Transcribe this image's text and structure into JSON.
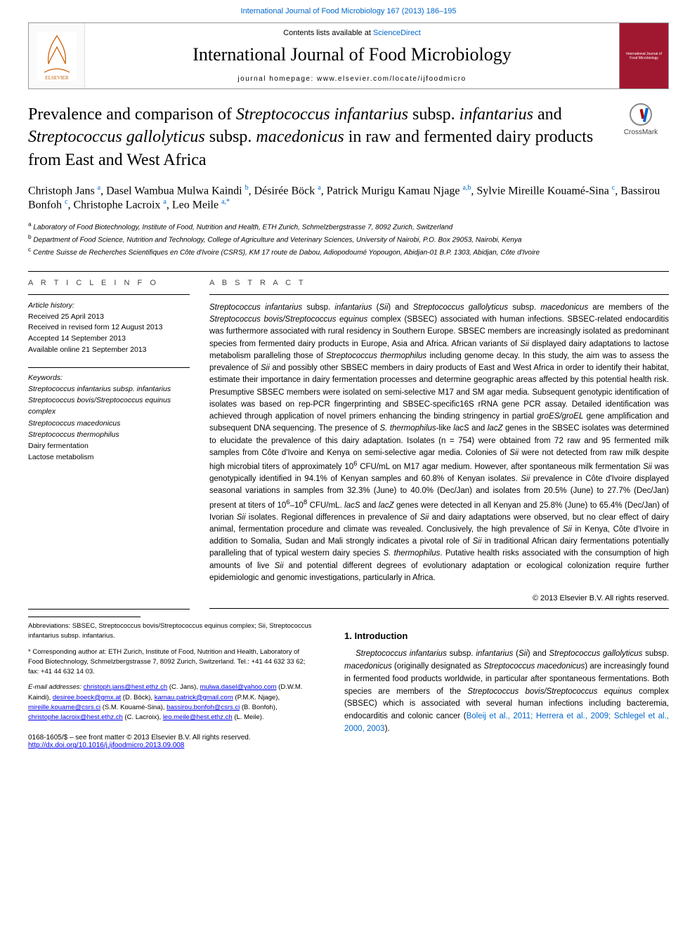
{
  "top_link_pre": "",
  "top_link": "International Journal of Food Microbiology 167 (2013) 186–195",
  "header": {
    "contents_pre": "Contents lists available at ",
    "contents_link": "ScienceDirect",
    "journal": "International Journal of Food Microbiology",
    "homepage_pre": "journal homepage: ",
    "homepage": "www.elsevier.com/locate/ijfoodmicro"
  },
  "crossmark_label": "CrossMark",
  "title_html": "Prevalence and comparison of <span class=\"italic\">Streptococcus infantarius</span> subsp. <span class=\"italic\">infantarius</span> and <span class=\"italic\">Streptococcus gallolyticus</span> subsp. <span class=\"italic\">macedonicus</span> in raw and fermented dairy products from East and West Africa",
  "authors_html": "Christoph Jans <sup>a</sup>, Dasel Wambua Mulwa Kaindi <sup>b</sup>, Désirée Böck <sup>a</sup>, Patrick Murigu Kamau Njage <sup>a,b</sup>, Sylvie Mireille Kouamé-Sina <sup>c</sup>, Bassirou Bonfoh <sup>c</sup>, Christophe Lacroix <sup>a</sup>, Leo Meile <sup>a,*</sup>",
  "affiliations": [
    "a Laboratory of Food Biotechnology, Institute of Food, Nutrition and Health, ETH Zurich, Schmelzbergstrasse 7, 8092 Zurich, Switzerland",
    "b Department of Food Science, Nutrition and Technology, College of Agriculture and Veterinary Sciences, University of Nairobi, P.O. Box 29053, Nairobi, Kenya",
    "c Centre Suisse de Recherches Scientifiques en Côte d'Ivoire (CSRS), KM 17 route de Dabou, Adiopodoumé Yopougon, Abidjan-01 B.P. 1303, Abidjan, Côte d'Ivoire"
  ],
  "article_info_head": "A R T I C L E   I N F O",
  "abstract_head": "A B S T R A C T",
  "history_label": "Article history:",
  "history": [
    "Received 25 April 2013",
    "Received in revised form 12 August 2013",
    "Accepted 14 September 2013",
    "Available online 21 September 2013"
  ],
  "keywords_label": "Keywords:",
  "keywords": [
    "Streptococcus infantarius subsp. infantarius",
    "Streptococcus bovis/Streptococcus equinus complex",
    "Streptococcus macedonicus",
    "Streptococcus thermophilus",
    "Dairy fermentation",
    "Lactose metabolism"
  ],
  "abstract_html": "<span class=\"italic\">Streptococcus infantarius</span> subsp. <span class=\"italic\">infantarius</span> (<span class=\"italic\">Sii</span>) and <span class=\"italic\">Streptococcus gallolyticus</span> subsp. <span class=\"italic\">macedonicus</span> are members of the <span class=\"italic\">Streptococcus bovis/Streptococcus equinus</span> complex (SBSEC) associated with human infections. SBSEC-related endocarditis was furthermore associated with rural residency in Southern Europe. SBSEC members are increasingly isolated as predominant species from fermented dairy products in Europe, Asia and Africa. African variants of <span class=\"italic\">Sii</span> displayed dairy adaptations to lactose metabolism paralleling those of <span class=\"italic\">Streptococcus thermophilus</span> including genome decay. In this study, the aim was to assess the prevalence of <span class=\"italic\">Sii</span> and possibly other SBSEC members in dairy products of East and West Africa in order to identify their habitat, estimate their importance in dairy fermentation processes and determine geographic areas affected by this potential health risk. Presumptive SBSEC members were isolated on semi-selective M17 and SM agar media. Subsequent genotypic identification of isolates was based on rep-PCR fingerprinting and SBSEC-specific16S rRNA gene PCR assay. Detailed identification was achieved through application of novel primers enhancing the binding stringency in partial <span class=\"italic\">groES/groEL</span> gene amplification and subsequent DNA sequencing. The presence of <span class=\"italic\">S. thermophilus</span>-like <span class=\"italic\">lacS</span> and <span class=\"italic\">lacZ</span> genes in the SBSEC isolates was determined to elucidate the prevalence of this dairy adaptation. Isolates (n = 754) were obtained from 72 raw and 95 fermented milk samples from Côte d'Ivoire and Kenya on semi-selective agar media. Colonies of <span class=\"italic\">Sii</span> were not detected from raw milk despite high microbial titers of approximately 10<sup>6</sup> CFU/mL on M17 agar medium. However, after spontaneous milk fermentation <span class=\"italic\">Sii</span> was genotypically identified in 94.1% of Kenyan samples and 60.8% of Kenyan isolates. <span class=\"italic\">Sii</span> prevalence in Côte d'Ivoire displayed seasonal variations in samples from 32.3% (June) to 40.0% (Dec/Jan) and isolates from 20.5% (June) to 27.7% (Dec/Jan) present at titers of 10<sup>6</sup>–10<sup>8</sup> CFU/mL. <span class=\"italic\">lacS</span> and <span class=\"italic\">lacZ</span> genes were detected in all Kenyan and 25.8% (June) to 65.4% (Dec/Jan) of Ivorian <span class=\"italic\">Sii</span> isolates. Regional differences in prevalence of <span class=\"italic\">Sii</span> and dairy adaptations were observed, but no clear effect of dairy animal, fermentation procedure and climate was revealed. Conclusively, the high prevalence of <span class=\"italic\">Sii</span> in Kenya, Côte d'Ivoire in addition to Somalia, Sudan and Mali strongly indicates a pivotal role of <span class=\"italic\">Sii</span> in traditional African dairy fermentations potentially paralleling that of typical western dairy species <span class=\"italic\">S. thermophilus</span>. Putative health risks associated with the consumption of high amounts of live <span class=\"italic\">Sii</span> and potential different degrees of evolutionary adaptation or ecological colonization require further epidemiologic and genomic investigations, particularly in Africa.",
  "abstract_copyright": "© 2013 Elsevier B.V. All rights reserved.",
  "intro_head": "1. Introduction",
  "intro_html": "<span class=\"italic\">Streptococcus infantarius</span> subsp. <span class=\"italic\">infantarius</span> (<span class=\"italic\">Sii</span>) and <span class=\"italic\">Streptococcus gallolyticus</span> subsp. <span class=\"italic\">macedonicus</span> (originally designated as <span class=\"italic\">Streptococcus macedonicus</span>) are increasingly found in fermented food products worldwide, in particular after spontaneous fermentations. Both species are members of the <span class=\"italic\">Streptococcus bovis/Streptococcus equinus</span> complex (SBSEC) which is associated with several human infections including bacteremia, endocarditis and colonic cancer (<a href=\"#\" data-name=\"citation-link\" data-interactable=\"true\">Boleij et al., 2011; Herrera et al., 2009; Schlegel et al., 2000, 2003</a>).",
  "abbrev_html": "<span class=\"italic\">Abbreviations:</span> SBSEC, <span class=\"italic\">Streptococcus bovis/Streptococcus equinus</span> complex; <span class=\"italic\">Sii</span>, <span class=\"italic\">Streptococcus infantarius</span> subsp. <span class=\"italic\">infantarius</span>.",
  "corresp_html": "* Corresponding author at: ETH Zurich, Institute of Food, Nutrition and Health, Laboratory of Food Biotechnology, Schmelzbergstrasse 7, 8092 Zurich, Switzerland. Tel.: +41 44 632 33 62; fax: +41 44 632 14 03.",
  "emails_label": "E-mail addresses:",
  "emails_html": "<a href=\"#\" data-name=\"email-link\" data-interactable=\"true\">christoph.jans@hest.ethz.ch</a> (C. Jans), <a href=\"#\" data-name=\"email-link\" data-interactable=\"true\">mulwa.dasel@yahoo.com</a> (D.W.M. Kaindi), <a href=\"#\" data-name=\"email-link\" data-interactable=\"true\">desiree.boeck@gmx.at</a> (D. Böck), <a href=\"#\" data-name=\"email-link\" data-interactable=\"true\">kamau.patrick@gmail.com</a> (P.M.K. Njage), <a href=\"#\" data-name=\"email-link\" data-interactable=\"true\">mireille.kouame@csrs.ci</a> (S.M. Kouamé-Sina), <a href=\"#\" data-name=\"email-link\" data-interactable=\"true\">bassirou.bonfoh@csrs.ci</a> (B. Bonfoh), <a href=\"#\" data-name=\"email-link\" data-interactable=\"true\">christophe.lacroix@hest.ethz.ch</a> (C. Lacroix), <a href=\"#\" data-name=\"email-link\" data-interactable=\"true\">leo.meile@hest.ethz.ch</a> (L. Meile).",
  "issn_line": "0168-1605/$ – see front matter © 2013 Elsevier B.V. All rights reserved.",
  "doi": "http://dx.doi.org/10.1016/j.ijfoodmicro.2013.09.008",
  "colors": {
    "link": "#0066cc",
    "journal_cover": "#a01830",
    "rule": "#000000"
  }
}
